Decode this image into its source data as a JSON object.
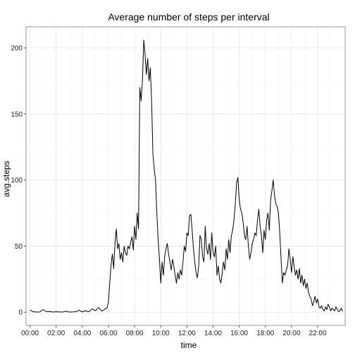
{
  "chart_data": {
    "type": "line",
    "title": "Average number of steps per interval",
    "xlabel": "time",
    "ylabel": "avg.steps",
    "x_unit": "hours since 00:00",
    "xlim": [
      -0.3,
      24.1
    ],
    "ylim": [
      -10,
      216
    ],
    "x_ticks": [
      {
        "value": 0,
        "label": "00:00"
      },
      {
        "value": 2,
        "label": "02:00"
      },
      {
        "value": 4,
        "label": "04:00"
      },
      {
        "value": 6,
        "label": "06:00"
      },
      {
        "value": 8,
        "label": "08:00"
      },
      {
        "value": 10,
        "label": "10:00"
      },
      {
        "value": 12,
        "label": "12:00"
      },
      {
        "value": 14,
        "label": "14:00"
      },
      {
        "value": 16,
        "label": "16:00"
      },
      {
        "value": 18,
        "label": "18:00"
      },
      {
        "value": 20,
        "label": "20:00"
      },
      {
        "value": 22,
        "label": "22:00"
      }
    ],
    "y_ticks": [
      {
        "value": 0,
        "label": "0"
      },
      {
        "value": 50,
        "label": "50"
      },
      {
        "value": 100,
        "label": "100"
      },
      {
        "value": 150,
        "label": "150"
      },
      {
        "value": 200,
        "label": "200"
      }
    ],
    "grid": true,
    "series": [
      {
        "color": "#000000",
        "x": [
          0,
          0.25,
          0.5,
          0.75,
          1,
          1.25,
          1.5,
          1.75,
          2,
          2.25,
          2.5,
          2.75,
          3,
          3.25,
          3.5,
          3.75,
          4,
          4.25,
          4.5,
          4.75,
          5,
          5.25,
          5.5,
          5.75,
          5.9,
          6,
          6.1,
          6.2,
          6.3,
          6.4,
          6.5,
          6.6,
          6.7,
          6.8,
          6.9,
          7,
          7.1,
          7.2,
          7.3,
          7.4,
          7.5,
          7.6,
          7.7,
          7.8,
          7.9,
          8,
          8.1,
          8.2,
          8.3,
          8.4,
          8.5,
          8.6,
          8.7,
          8.8,
          8.9,
          9,
          9.1,
          9.2,
          9.3,
          9.4,
          9.5,
          9.6,
          9.7,
          9.8,
          9.9,
          10,
          10.1,
          10.2,
          10.3,
          10.4,
          10.5,
          10.6,
          10.7,
          10.8,
          10.9,
          11,
          11.1,
          11.2,
          11.3,
          11.4,
          11.5,
          11.6,
          11.7,
          11.8,
          11.9,
          12,
          12.1,
          12.2,
          12.3,
          12.4,
          12.5,
          12.6,
          12.7,
          12.8,
          12.9,
          13,
          13.1,
          13.2,
          13.3,
          13.4,
          13.5,
          13.6,
          13.7,
          13.8,
          13.9,
          14,
          14.1,
          14.2,
          14.3,
          14.4,
          14.5,
          14.6,
          14.7,
          14.8,
          14.9,
          15,
          15.1,
          15.2,
          15.3,
          15.4,
          15.5,
          15.6,
          15.7,
          15.8,
          15.9,
          16,
          16.1,
          16.2,
          16.3,
          16.4,
          16.5,
          16.6,
          16.7,
          16.8,
          16.9,
          17,
          17.1,
          17.2,
          17.3,
          17.4,
          17.5,
          17.6,
          17.7,
          17.8,
          17.9,
          18,
          18.1,
          18.2,
          18.3,
          18.4,
          18.5,
          18.6,
          18.7,
          18.8,
          18.9,
          19,
          19.1,
          19.2,
          19.3,
          19.4,
          19.5,
          19.6,
          19.7,
          19.8,
          19.9,
          20,
          20.1,
          20.2,
          20.3,
          20.4,
          20.5,
          20.6,
          20.7,
          20.8,
          20.9,
          21,
          21.1,
          21.2,
          21.3,
          21.4,
          21.5,
          21.6,
          21.7,
          21.8,
          21.9,
          22,
          22.1,
          22.2,
          22.3,
          22.4,
          22.5,
          22.6,
          22.7,
          22.8,
          22.9,
          23,
          23.1,
          23.2,
          23.3,
          23.4,
          23.5,
          23.6,
          23.7,
          23.8,
          23.92
        ],
        "y": [
          1.7,
          0.3,
          0.1,
          0.2,
          2,
          0.4,
          0.5,
          0.1,
          0.3,
          0.2,
          0.1,
          0.8,
          0.1,
          0.2,
          0.3,
          1.5,
          0.2,
          1.2,
          0.3,
          2.5,
          1.1,
          3.5,
          0.8,
          2.5,
          3.5,
          8,
          22,
          36,
          44,
          33,
          52,
          63,
          48,
          52,
          40,
          45,
          38,
          50,
          45,
          43,
          50,
          48,
          53,
          57,
          47,
          65,
          55,
          75,
          63,
          170,
          160,
          175,
          206,
          195,
          180,
          192,
          175,
          185,
          160,
          120,
          108,
          100,
          75,
          55,
          40,
          22,
          38,
          28,
          42,
          48,
          52,
          44,
          38,
          32,
          40,
          35,
          28,
          22,
          30,
          25,
          32,
          28,
          38,
          50,
          46,
          60,
          58,
          73,
          74,
          62,
          48,
          38,
          30,
          26,
          35,
          58,
          55,
          42,
          38,
          65,
          48,
          44,
          52,
          40,
          60,
          45,
          42,
          50,
          28,
          35,
          25,
          22,
          30,
          38,
          32,
          48,
          40,
          55,
          45,
          58,
          62,
          70,
          82,
          98,
          102,
          85,
          78,
          75,
          68,
          58,
          55,
          65,
          50,
          40,
          45,
          52,
          55,
          60,
          58,
          70,
          78,
          65,
          58,
          45,
          62,
          55,
          70,
          75,
          62,
          85,
          92,
          100,
          88,
          82,
          80,
          75,
          60,
          40,
          22,
          30,
          28,
          32,
          35,
          48,
          40,
          30,
          42,
          35,
          28,
          32,
          25,
          33,
          22,
          28,
          20,
          25,
          18,
          22,
          15,
          12,
          10,
          5,
          8,
          12,
          7,
          10,
          4,
          3,
          5,
          2,
          1,
          4,
          2,
          6,
          4,
          1,
          3,
          2,
          1,
          4,
          2,
          0.5,
          1,
          3,
          0.5
        ]
      }
    ]
  }
}
